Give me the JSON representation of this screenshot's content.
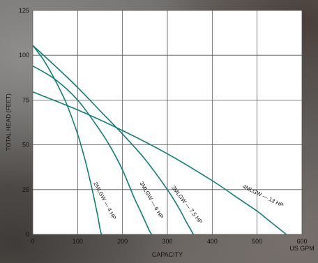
{
  "chart_data": {
    "type": "line",
    "xlabel": "CAPACITY",
    "ylabel": "TOTAL HEAD (FEET)",
    "x_unit": "US GPM",
    "xlim": [
      0,
      600
    ],
    "ylim": [
      0,
      125
    ],
    "x_ticks": [
      "0",
      "100",
      "200",
      "300",
      "400",
      "500",
      "600"
    ],
    "y_ticks": [
      "0",
      "25",
      "50",
      "75",
      "100",
      "125"
    ],
    "grid": true,
    "line_color": "#0e7f74",
    "plot_background": "#ffffff",
    "series": [
      {
        "name": "2MLGW — 4 HP",
        "x": [
          0,
          25,
          50,
          75,
          100,
          115,
          125,
          135,
          145,
          150,
          153
        ],
        "y": [
          105.5,
          97,
          86,
          73,
          56,
          43,
          33,
          22,
          10,
          3,
          0
        ]
      },
      {
        "name": "3MLGW — 6 HP",
        "x": [
          0,
          50,
          100,
          150,
          175,
          200,
          225,
          240,
          250,
          260,
          265
        ],
        "y": [
          94,
          86.5,
          75,
          58,
          48,
          36,
          21,
          13,
          7.5,
          2,
          0
        ]
      },
      {
        "name": "3MLGW — 7.5 HP",
        "x": [
          0,
          50,
          100,
          150,
          200,
          250,
          300,
          325,
          340,
          350,
          358
        ],
        "y": [
          105.5,
          94,
          82,
          69,
          56,
          42,
          25,
          15,
          8,
          3.5,
          0
        ]
      },
      {
        "name": "4MLGW — 13 HP",
        "x": [
          0,
          100,
          200,
          300,
          400,
          450,
          500,
          525,
          550,
          565
        ],
        "y": [
          79.5,
          69.5,
          58,
          45,
          30,
          21.5,
          13,
          8,
          3,
          0
        ]
      }
    ]
  }
}
